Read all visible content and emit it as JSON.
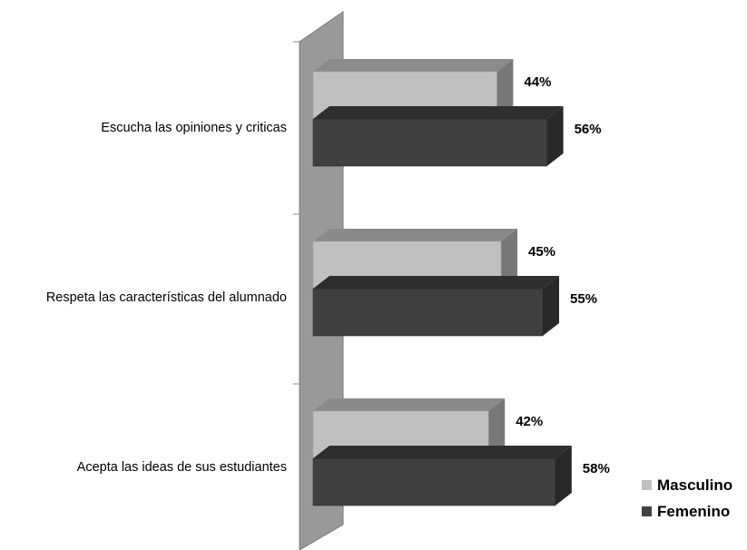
{
  "chart_data": {
    "type": "bar",
    "orientation": "horizontal",
    "style": "3d",
    "categories": [
      "Escucha las opiniones y criticas",
      "Respeta las características  del alumnado",
      "Acepta las ideas de sus estudiantes"
    ],
    "series": [
      {
        "name": "Masculino",
        "values": [
          44,
          45,
          42
        ],
        "labels": [
          "44%",
          "45%",
          "42%"
        ],
        "color": "#c0c0c0"
      },
      {
        "name": "Femenino",
        "values": [
          56,
          55,
          58
        ],
        "labels": [
          "56%",
          "55%",
          "58%"
        ],
        "color": "#404040"
      }
    ],
    "xlim": [
      0,
      100
    ],
    "unit": "%",
    "grid": false,
    "legend_position": "bottom-right",
    "wall_color": "#999999"
  }
}
